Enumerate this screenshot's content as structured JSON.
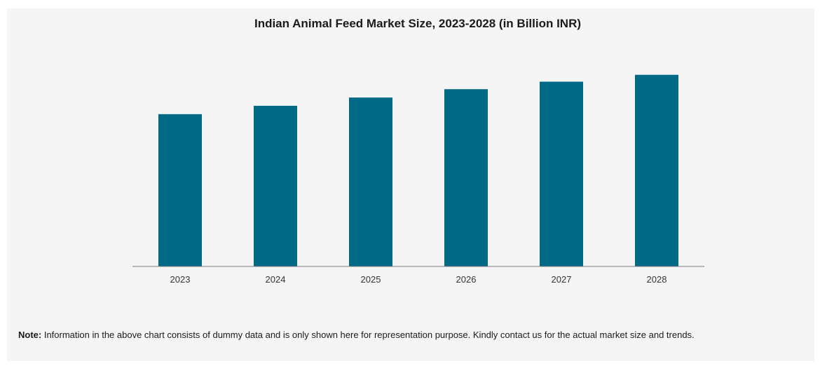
{
  "colors": {
    "bar": "#006a86",
    "axis": "#7a7a7a"
  },
  "chart_data": {
    "type": "bar",
    "title": "Indian Animal Feed Market Size, 2023-2028 (in Billion INR)",
    "xlabel": "",
    "ylabel": "",
    "categories": [
      "2023",
      "2024",
      "2025",
      "2026",
      "2027",
      "2028"
    ],
    "values": [
      55,
      58,
      61,
      64,
      66.7,
      69.2
    ],
    "ylim": [
      0,
      80
    ],
    "grid": false,
    "legend": "none"
  },
  "note": {
    "label": "Note:",
    "text": " Information in the above chart consists of dummy data and is only shown here for representation purpose. Kindly contact us for the actual market size and trends."
  }
}
